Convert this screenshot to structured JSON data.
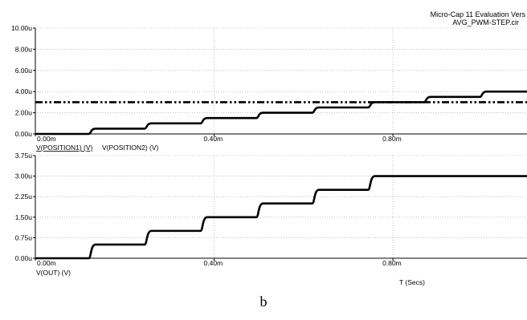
{
  "header": {
    "app_line": "Micro-Cap 11 Evaluation Vers",
    "file_line": "AVG_PWM-STEP.cir"
  },
  "caption": "b",
  "colors": {
    "trace": "#000000",
    "grid": "#9a9a9a",
    "axis": "#000000"
  },
  "chart_data": [
    {
      "type": "line",
      "title": "",
      "ylim": [
        0,
        10
      ],
      "y_unit_scale": "u",
      "yticks": [
        "0.00u",
        "2.00u",
        "4.00u",
        "6.00u",
        "8.00u",
        "10.00u"
      ],
      "yticks_values": [
        0,
        2,
        4,
        6,
        8,
        10
      ],
      "xlim": [
        0,
        1.1
      ],
      "xticks": [
        "0.00m",
        "0.40m",
        "0.80m"
      ],
      "xticks_values": [
        0,
        0.4,
        0.8
      ],
      "legend_labels": [
        "V(POSITION1) (V)",
        "V(POSITION2) (V)"
      ],
      "series": [
        {
          "style": "solid",
          "step_times": [
            0.125,
            0.25,
            0.375,
            0.5,
            0.625,
            0.75,
            0.875,
            1.0
          ],
          "levels": [
            0,
            0.5,
            1.0,
            1.5,
            2.0,
            2.5,
            3.0,
            3.5,
            4.0
          ]
        },
        {
          "style": "dash-dot",
          "constant": 3.0
        }
      ]
    },
    {
      "type": "line",
      "title": "",
      "ylim": [
        0,
        3.75
      ],
      "yticks": [
        "0.00u",
        "0.75u",
        "1.50u",
        "2.25u",
        "3.00u",
        "3.75u"
      ],
      "yticks_values": [
        0,
        0.75,
        1.5,
        2.25,
        3.0,
        3.75
      ],
      "xlim": [
        0,
        1.1
      ],
      "xticks": [
        "0.00m",
        "0.40m",
        "0.80m"
      ],
      "xticks_values": [
        0,
        0.4,
        0.8
      ],
      "legend_labels": [
        "V(OUT) (V)"
      ],
      "xlabel": "T (Secs)",
      "series": [
        {
          "style": "solid",
          "step_times": [
            0.125,
            0.25,
            0.375,
            0.5,
            0.625,
            0.75
          ],
          "levels": [
            0,
            0.5,
            1.0,
            1.5,
            2.0,
            2.5,
            3.0
          ]
        }
      ]
    }
  ]
}
